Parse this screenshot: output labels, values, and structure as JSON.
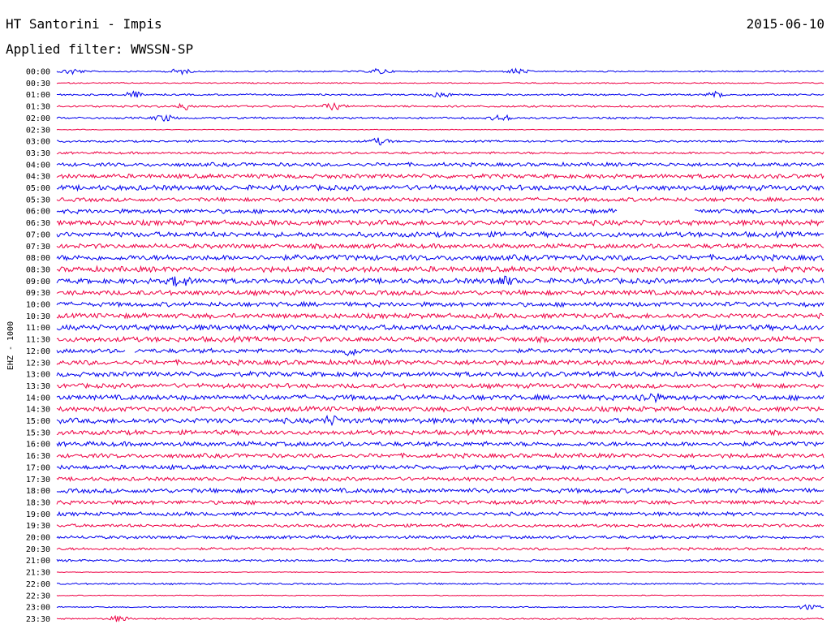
{
  "header": {
    "station": "HT Santorini - Impis",
    "filter": "Applied filter: WWSSN-SP",
    "date": "2015-06-10"
  },
  "channel_label": "EHZ - 1000",
  "colors": {
    "odd_trace": "#0000ee",
    "even_trace": "#ee0044",
    "background": "#ffffff"
  },
  "chart_data": {
    "type": "line",
    "title": "HT Santorini - Impis",
    "subtitle": "Applied filter: WWSSN-SP",
    "date": "2015-06-10",
    "ylabel": "EHZ - 1000",
    "y_tick_labels": [
      "00:00",
      "00:30",
      "01:00",
      "01:30",
      "02:00",
      "02:30",
      "03:00",
      "03:30",
      "04:00",
      "04:30",
      "05:00",
      "05:30",
      "06:00",
      "06:30",
      "07:00",
      "07:30",
      "08:00",
      "08:30",
      "09:00",
      "09:30",
      "10:00",
      "10:30",
      "11:00",
      "11:30",
      "12:00",
      "12:30",
      "13:00",
      "13:30",
      "14:00",
      "14:30",
      "15:00",
      "15:30",
      "16:00",
      "16:30",
      "17:00",
      "17:30",
      "18:00",
      "18:30",
      "19:00",
      "19:30",
      "20:00",
      "20:30",
      "21:00",
      "21:30",
      "22:00",
      "22:30",
      "23:00",
      "23:30"
    ],
    "trace_colors": [
      "#0000ee",
      "#ee0044"
    ],
    "row_duration_minutes": 30,
    "relative_amplitude": [
      1.0,
      0.8,
      1.2,
      1.4,
      1.4,
      0.5,
      1.4,
      1.6,
      2.6,
      3.0,
      3.6,
      2.8,
      3.0,
      3.6,
      3.6,
      3.2,
      3.8,
      3.8,
      3.6,
      3.4,
      3.2,
      3.4,
      3.8,
      3.6,
      3.0,
      3.4,
      3.4,
      3.2,
      3.6,
      3.4,
      3.6,
      3.2,
      3.2,
      3.0,
      3.0,
      2.6,
      3.2,
      2.8,
      2.6,
      2.2,
      2.2,
      1.8,
      1.6,
      0.5,
      1.2,
      0.6,
      0.8,
      1.0
    ],
    "events": [
      {
        "row": "00:00",
        "at": [
          0.02,
          0.16,
          0.42,
          0.6
        ]
      },
      {
        "row": "01:00",
        "at": [
          0.1,
          0.5,
          0.86
        ]
      },
      {
        "row": "01:30",
        "at": [
          0.17,
          0.36
        ]
      },
      {
        "row": "02:00",
        "at": [
          0.14,
          0.58
        ]
      },
      {
        "row": "03:00",
        "at": [
          0.42
        ]
      },
      {
        "row": "09:00",
        "at": [
          0.16,
          0.58
        ]
      },
      {
        "row": "12:00",
        "at": [
          0.38
        ]
      },
      {
        "row": "14:00",
        "at": [
          0.77
        ]
      },
      {
        "row": "15:00",
        "at": [
          0.36
        ]
      },
      {
        "row": "23:00",
        "at": [
          0.98
        ]
      },
      {
        "row": "23:30",
        "at": [
          0.08
        ]
      }
    ],
    "gaps": [
      {
        "row": "06:00",
        "from": 0.73,
        "to": 0.83
      },
      {
        "row": "12:00",
        "from": 0.09,
        "to": 0.1
      }
    ]
  }
}
